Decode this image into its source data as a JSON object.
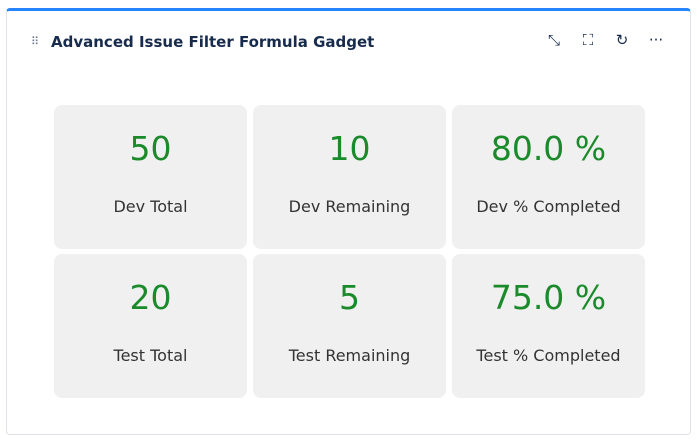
{
  "header": {
    "title": "Advanced Issue Filter Formula Gadget",
    "icons": [
      "minimize-icon",
      "fullscreen-icon",
      "refresh-icon",
      "more-icon"
    ]
  },
  "colors": {
    "accent": "#2684ff",
    "value": "#1a8a2a"
  },
  "tiles": [
    {
      "value": "50",
      "label": "Dev Total"
    },
    {
      "value": "10",
      "label": "Dev Remaining"
    },
    {
      "value": "80.0 %",
      "label": "Dev % Completed"
    },
    {
      "value": "20",
      "label": "Test Total"
    },
    {
      "value": "5",
      "label": "Test Remaining"
    },
    {
      "value": "75.0 %",
      "label": "Test % Completed"
    }
  ]
}
